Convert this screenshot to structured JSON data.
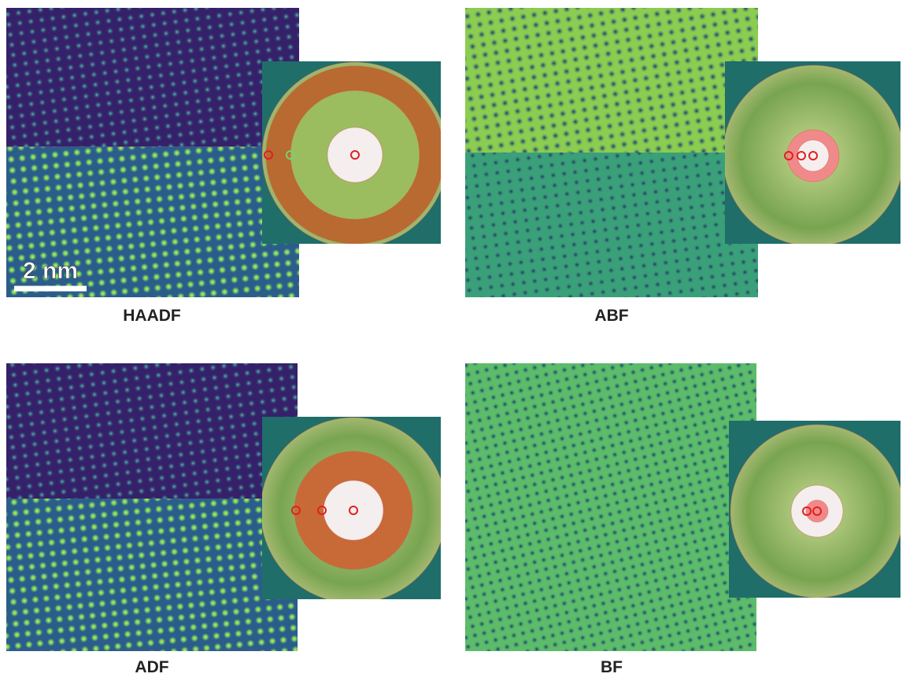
{
  "scale_bar": "2 nm",
  "panels": [
    {
      "label": "HAADF"
    },
    {
      "label": "ABF"
    },
    {
      "label": "ADF"
    },
    {
      "label": "BF"
    }
  ]
}
